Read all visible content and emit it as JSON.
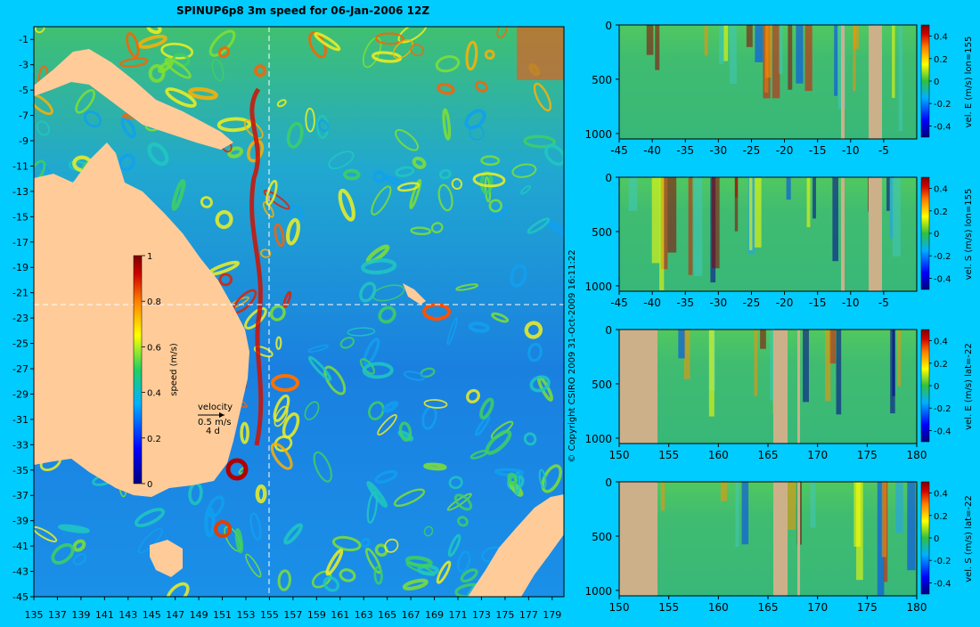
{
  "title": "SPINUP6p8 3m speed for 06-Jan-2006 12Z",
  "copyright": "© Copyright CSIRO 2009   31-Oct-2009 16:11:22",
  "colors": {
    "background": "#00ccff",
    "land": "#ffcc99",
    "section_land": "#ccb08a",
    "crosshair": "#ffffff"
  },
  "chart_data": [
    {
      "type": "heatmap",
      "title": "SPINUP6p8 3m speed for 06-Jan-2006 12Z",
      "x_ticks": [
        "135",
        "137",
        "139",
        "141",
        "143",
        "145",
        "147",
        "149",
        "151",
        "153",
        "155",
        "157",
        "159",
        "161",
        "163",
        "165",
        "167",
        "169",
        "171",
        "173",
        "175",
        "177",
        "179"
      ],
      "y_ticks": [
        "-1",
        "-3",
        "-5",
        "-7",
        "-9",
        "-11",
        "-13",
        "-15",
        "-17",
        "-19",
        "-21",
        "-23",
        "-25",
        "-27",
        "-29",
        "-31",
        "-33",
        "-35",
        "-37",
        "-39",
        "-41",
        "-43",
        "-45"
      ],
      "xlim": [
        135,
        180
      ],
      "ylim": [
        -45,
        0
      ],
      "section_lon": 155,
      "section_lat": -22,
      "colorbar": {
        "label": "speed (m/s)",
        "ticks": [
          "0",
          "0.2",
          "0.4",
          "0.6",
          "0.8",
          "1"
        ],
        "range": [
          0,
          1
        ]
      },
      "velocity_key": {
        "title": "velocity",
        "speed": "0.5 m/s",
        "duration": "4 d"
      }
    },
    {
      "type": "heatmap",
      "x_ticks": [
        "-45",
        "-40",
        "-35",
        "-30",
        "-25",
        "-20",
        "-15",
        "-10",
        "-5"
      ],
      "y_ticks": [
        "0",
        "500",
        "1000"
      ],
      "xlim": [
        -45,
        0
      ],
      "ylim": [
        0,
        1050
      ],
      "colorbar": {
        "label": "vel. E (m/s) lon=155",
        "ticks": [
          "0.4",
          "0.2",
          "0",
          "-0.2",
          "-0.4"
        ],
        "range": [
          -0.5,
          0.5
        ]
      }
    },
    {
      "type": "heatmap",
      "x_ticks": [
        "-45",
        "-40",
        "-35",
        "-30",
        "-25",
        "-20",
        "-15",
        "-10",
        "-5"
      ],
      "y_ticks": [
        "0",
        "500",
        "1000"
      ],
      "xlim": [
        -45,
        0
      ],
      "ylim": [
        0,
        1050
      ],
      "colorbar": {
        "label": "vel. S (m/s) lon=155",
        "ticks": [
          "0.4",
          "0.2",
          "0",
          "-0.2",
          "-0.4"
        ],
        "range": [
          -0.5,
          0.5
        ]
      }
    },
    {
      "type": "heatmap",
      "x_ticks": [
        "150",
        "155",
        "160",
        "165",
        "170",
        "175",
        "180"
      ],
      "y_ticks": [
        "0",
        "500",
        "1000"
      ],
      "xlim": [
        150,
        180
      ],
      "ylim": [
        0,
        1050
      ],
      "colorbar": {
        "label": "vel. E (m/s) lat=-22",
        "ticks": [
          "0.4",
          "0.2",
          "0",
          "-0.2",
          "-0.4"
        ],
        "range": [
          -0.5,
          0.5
        ]
      }
    },
    {
      "type": "heatmap",
      "x_ticks": [
        "150",
        "155",
        "160",
        "165",
        "170",
        "175",
        "180"
      ],
      "y_ticks": [
        "0",
        "500",
        "1000"
      ],
      "xlim": [
        150,
        180
      ],
      "ylim": [
        0,
        1050
      ],
      "colorbar": {
        "label": "vel. S (m/s) lat=-22",
        "ticks": [
          "0.4",
          "0.2",
          "0",
          "-0.2",
          "-0.4"
        ],
        "range": [
          -0.5,
          0.5
        ]
      }
    }
  ]
}
